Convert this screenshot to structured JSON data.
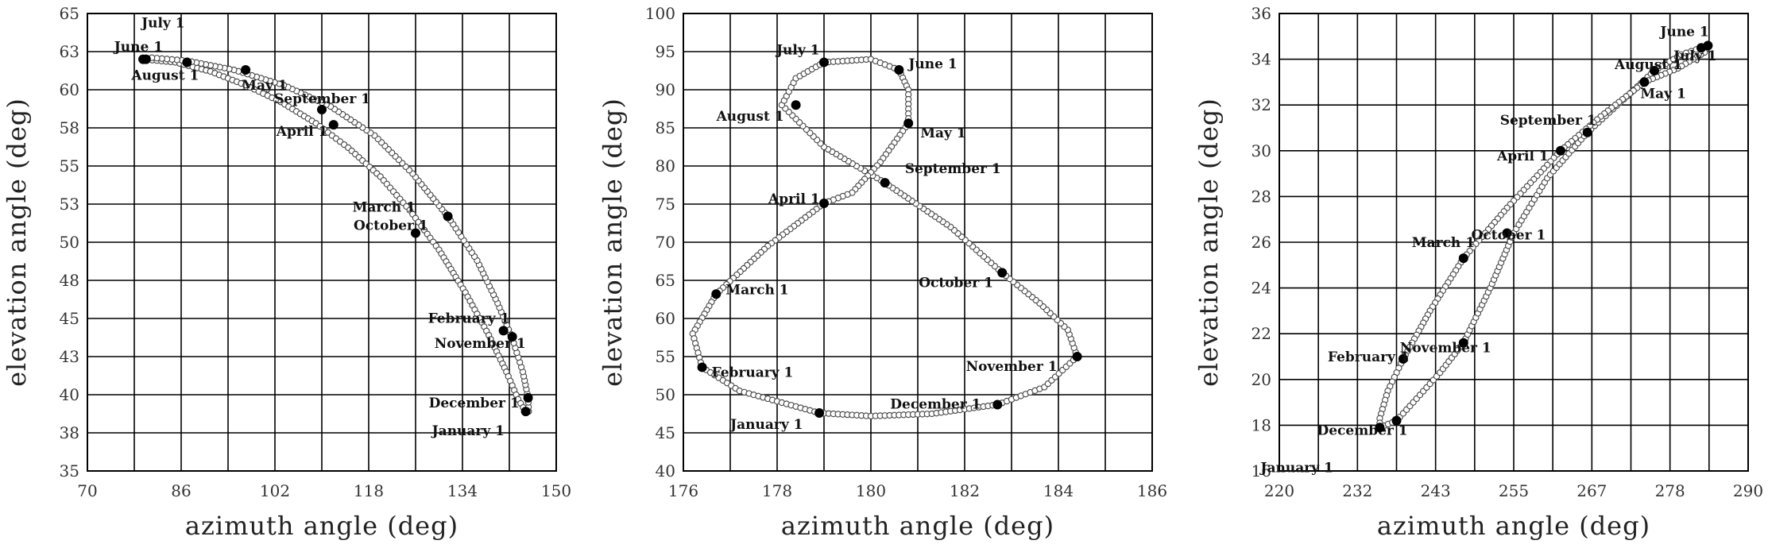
{
  "chart_data": [
    {
      "type": "scatter",
      "xlabel": "azimuth angle (deg)",
      "ylabel": "elevation angle (deg)",
      "xlim": [
        70,
        150
      ],
      "ylim": [
        35,
        65
      ],
      "xticks": [
        "70",
        "86",
        "102",
        "118",
        "134",
        "150"
      ],
      "yticks": [
        "35",
        "38",
        "40",
        "43",
        "45",
        "48",
        "50",
        "53",
        "55",
        "58",
        "60",
        "63",
        "65"
      ],
      "grid": true,
      "series": [
        {
          "values": [
            {
              "x": 79.5,
              "y": 62.0
            },
            {
              "x": 85.0,
              "y": 61.8
            },
            {
              "x": 91.0,
              "y": 61.2
            },
            {
              "x": 97.0,
              "y": 60.3
            },
            {
              "x": 103.0,
              "y": 59.2
            },
            {
              "x": 109.0,
              "y": 57.8
            },
            {
              "x": 114.5,
              "y": 56.2
            },
            {
              "x": 120.0,
              "y": 54.3
            },
            {
              "x": 125.0,
              "y": 52.1
            },
            {
              "x": 130.0,
              "y": 49.5
            },
            {
              "x": 134.5,
              "y": 46.7
            },
            {
              "x": 138.5,
              "y": 43.9
            },
            {
              "x": 141.5,
              "y": 41.5
            },
            {
              "x": 143.5,
              "y": 39.7
            },
            {
              "x": 144.8,
              "y": 38.9
            },
            {
              "x": 145.3,
              "y": 38.9
            },
            {
              "x": 145.2,
              "y": 39.8
            },
            {
              "x": 144.3,
              "y": 41.5
            },
            {
              "x": 142.5,
              "y": 43.7
            },
            {
              "x": 140.0,
              "y": 46.0
            },
            {
              "x": 136.5,
              "y": 48.8
            },
            {
              "x": 131.5,
              "y": 51.7
            },
            {
              "x": 125.5,
              "y": 54.5
            },
            {
              "x": 119.0,
              "y": 57.0
            },
            {
              "x": 111.5,
              "y": 58.9
            },
            {
              "x": 103.5,
              "y": 60.3
            },
            {
              "x": 95.0,
              "y": 61.3
            },
            {
              "x": 87.0,
              "y": 61.9
            },
            {
              "x": 81.0,
              "y": 62.1
            },
            {
              "x": 79.5,
              "y": 62.0
            }
          ]
        }
      ],
      "annotations": [
        {
          "label": "July 1",
          "x": 79.5,
          "y": 62.0
        },
        {
          "label": "June 1",
          "x": 80.0,
          "y": 62.0
        },
        {
          "label": "August 1",
          "x": 87.0,
          "y": 61.8
        },
        {
          "label": "May 1",
          "x": 97.0,
          "y": 61.3
        },
        {
          "label": "September 1",
          "x": 110.0,
          "y": 58.7
        },
        {
          "label": "April 1",
          "x": 112.0,
          "y": 57.7
        },
        {
          "label": "March 1",
          "x": 131.5,
          "y": 51.7
        },
        {
          "label": "October 1",
          "x": 126.0,
          "y": 50.6
        },
        {
          "label": "February 1",
          "x": 141.0,
          "y": 44.2
        },
        {
          "label": "November 1",
          "x": 142.5,
          "y": 43.8
        },
        {
          "label": "December 1",
          "x": 145.2,
          "y": 39.8
        },
        {
          "label": "January 1",
          "x": 144.8,
          "y": 38.9
        }
      ]
    },
    {
      "type": "scatter",
      "xlabel": "azimuth angle (deg)",
      "ylabel": "elevation angle (deg)",
      "xlim": [
        176,
        186
      ],
      "ylim": [
        40,
        100
      ],
      "xticks": [
        "176",
        "178",
        "180",
        "182",
        "184",
        "186"
      ],
      "yticks": [
        "40",
        "45",
        "50",
        "55",
        "60",
        "65",
        "70",
        "75",
        "80",
        "85",
        "90",
        "95",
        "100"
      ],
      "grid": true,
      "series": [
        {
          "values": [
            {
              "x": 178.9,
              "y": 47.6
            },
            {
              "x": 180.0,
              "y": 47.2
            },
            {
              "x": 181.3,
              "y": 47.5
            },
            {
              "x": 182.7,
              "y": 48.7
            },
            {
              "x": 183.7,
              "y": 51.0
            },
            {
              "x": 184.4,
              "y": 55.0
            },
            {
              "x": 184.2,
              "y": 58.5
            },
            {
              "x": 183.6,
              "y": 62.0
            },
            {
              "x": 182.8,
              "y": 66.0
            },
            {
              "x": 181.7,
              "y": 72.0
            },
            {
              "x": 180.3,
              "y": 77.8
            },
            {
              "x": 179.0,
              "y": 82.5
            },
            {
              "x": 178.1,
              "y": 88.0
            },
            {
              "x": 178.4,
              "y": 91.5
            },
            {
              "x": 179.0,
              "y": 93.6
            },
            {
              "x": 180.0,
              "y": 94.0
            },
            {
              "x": 180.6,
              "y": 92.6
            },
            {
              "x": 180.8,
              "y": 90.0
            },
            {
              "x": 180.8,
              "y": 85.6
            },
            {
              "x": 180.2,
              "y": 80.5
            },
            {
              "x": 179.6,
              "y": 76.5
            },
            {
              "x": 179.0,
              "y": 75.1
            },
            {
              "x": 177.8,
              "y": 69.5
            },
            {
              "x": 176.7,
              "y": 63.2
            },
            {
              "x": 176.2,
              "y": 58.0
            },
            {
              "x": 176.4,
              "y": 53.6
            },
            {
              "x": 177.2,
              "y": 50.5
            },
            {
              "x": 178.9,
              "y": 47.6
            }
          ]
        }
      ],
      "annotations": [
        {
          "label": "July 1",
          "x": 179.0,
          "y": 93.6
        },
        {
          "label": "June 1",
          "x": 180.6,
          "y": 92.6
        },
        {
          "label": "August 1",
          "x": 178.4,
          "y": 88.0
        },
        {
          "label": "May 1",
          "x": 180.8,
          "y": 85.6
        },
        {
          "label": "September 1",
          "x": 180.3,
          "y": 77.8
        },
        {
          "label": "April 1",
          "x": 179.0,
          "y": 75.1
        },
        {
          "label": "October 1",
          "x": 182.8,
          "y": 66.0
        },
        {
          "label": "March 1",
          "x": 176.7,
          "y": 63.2
        },
        {
          "label": "November 1",
          "x": 184.4,
          "y": 55.0
        },
        {
          "label": "February 1",
          "x": 176.4,
          "y": 53.6
        },
        {
          "label": "December 1",
          "x": 182.7,
          "y": 48.7
        },
        {
          "label": "January 1",
          "x": 178.9,
          "y": 47.6
        }
      ]
    },
    {
      "type": "scatter",
      "xlabel": "azimuth angle (deg)",
      "ylabel": "elevation angle (deg)",
      "xlim": [
        220,
        290
      ],
      "ylim": [
        16,
        36
      ],
      "xticks": [
        "220",
        "232",
        "243",
        "255",
        "267",
        "278",
        "290"
      ],
      "yticks": [
        "16",
        "18",
        "20",
        "22",
        "24",
        "26",
        "28",
        "30",
        "32",
        "34",
        "36"
      ],
      "grid": true,
      "series": [
        {
          "values": [
            {
              "x": 235.0,
              "y": 17.9
            },
            {
              "x": 237.5,
              "y": 18.2
            },
            {
              "x": 240.0,
              "y": 19.0
            },
            {
              "x": 244.0,
              "y": 20.3
            },
            {
              "x": 247.5,
              "y": 21.6
            },
            {
              "x": 251.5,
              "y": 24.0
            },
            {
              "x": 255.0,
              "y": 26.4
            },
            {
              "x": 260.0,
              "y": 28.8
            },
            {
              "x": 266.0,
              "y": 30.8
            },
            {
              "x": 272.0,
              "y": 32.4
            },
            {
              "x": 276.0,
              "y": 33.5
            },
            {
              "x": 280.0,
              "y": 34.2
            },
            {
              "x": 283.0,
              "y": 34.5
            },
            {
              "x": 284.0,
              "y": 34.6
            },
            {
              "x": 283.5,
              "y": 34.3
            },
            {
              "x": 279.5,
              "y": 33.6
            },
            {
              "x": 274.5,
              "y": 33.0
            },
            {
              "x": 268.0,
              "y": 31.5
            },
            {
              "x": 262.0,
              "y": 30.0
            },
            {
              "x": 254.0,
              "y": 27.5
            },
            {
              "x": 247.5,
              "y": 25.3
            },
            {
              "x": 242.5,
              "y": 23.0
            },
            {
              "x": 238.5,
              "y": 20.9
            },
            {
              "x": 236.2,
              "y": 19.5
            },
            {
              "x": 235.0,
              "y": 18.3
            },
            {
              "x": 235.0,
              "y": 17.9
            }
          ]
        }
      ],
      "annotations": [
        {
          "label": "June 1",
          "x": 284.0,
          "y": 34.6
        },
        {
          "label": "July 1",
          "x": 283.0,
          "y": 34.5
        },
        {
          "label": "August 1",
          "x": 276.0,
          "y": 33.5
        },
        {
          "label": "May 1",
          "x": 274.5,
          "y": 33.0
        },
        {
          "label": "September 1",
          "x": 266.0,
          "y": 30.8
        },
        {
          "label": "April 1",
          "x": 262.0,
          "y": 30.0
        },
        {
          "label": "March 1",
          "x": 247.5,
          "y": 25.3
        },
        {
          "label": "October 1",
          "x": 254.0,
          "y": 26.4
        },
        {
          "label": "February 1",
          "x": 238.5,
          "y": 20.9
        },
        {
          "label": "November 1",
          "x": 247.5,
          "y": 21.6
        },
        {
          "label": "December 1",
          "x": 237.5,
          "y": 18.2
        },
        {
          "label": "January 1",
          "x": 235.0,
          "y": 17.9
        }
      ]
    }
  ]
}
